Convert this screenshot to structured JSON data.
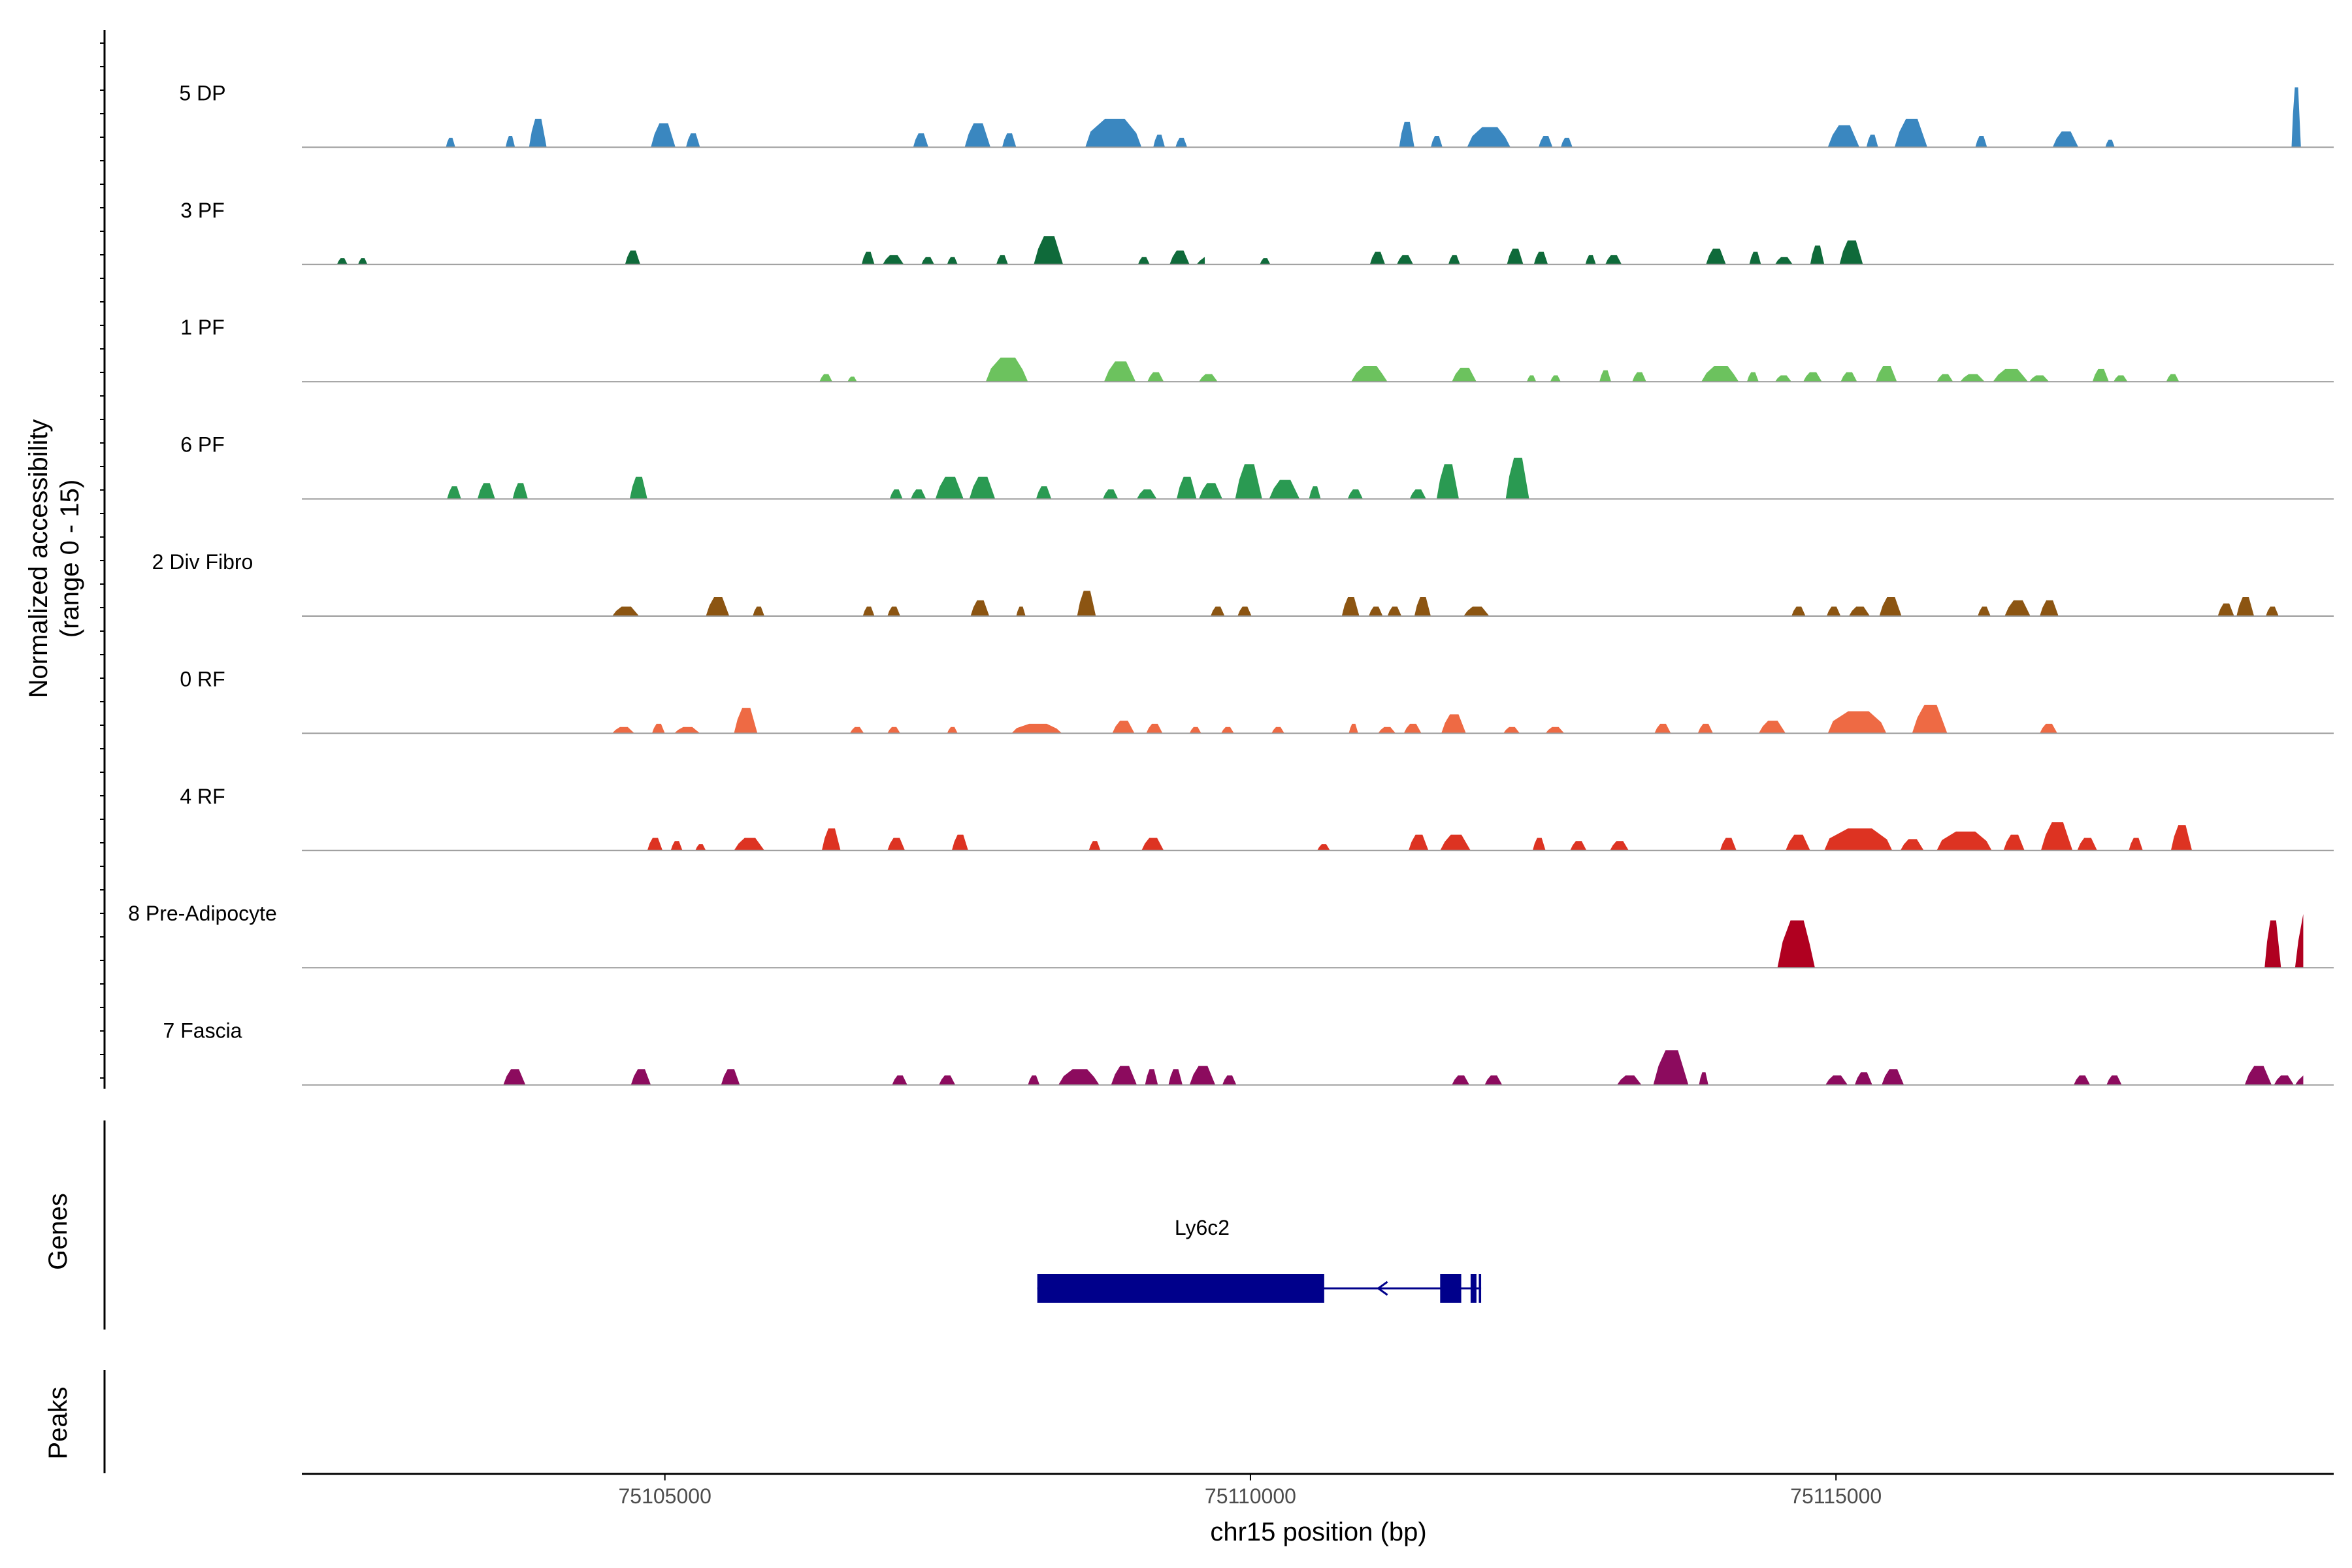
{
  "chart_data": {
    "type": "area",
    "title": "",
    "y_axis_label_line1": "Normalized accessibility",
    "y_axis_label_line2": "(range 0 - 15)",
    "y_range": [
      0,
      15
    ],
    "xlabel": "chr15 position (bp)",
    "xlim": [
      75101900,
      75119250
    ],
    "x_ticks": [
      75105000,
      75110000,
      75115000
    ],
    "x_tick_labels": [
      "75105000",
      "75110000",
      "75115000"
    ],
    "tracks": [
      {
        "name": "5 DP",
        "color": "#3a87c0",
        "peaks": [
          [
            75103130,
            75103210,
            1.5
          ],
          [
            75103640,
            75103720,
            1.8
          ],
          [
            75103840,
            75103990,
            4.5
          ],
          [
            75104880,
            75105090,
            3.8
          ],
          [
            75105180,
            75105300,
            2.2
          ],
          [
            75107120,
            75107250,
            2.2
          ],
          [
            75107560,
            75107780,
            3.8
          ],
          [
            75107880,
            75108000,
            2.2
          ],
          [
            75108590,
            75109070,
            4.5
          ],
          [
            75109170,
            75109270,
            2.0
          ],
          [
            75109360,
            75109460,
            1.5
          ],
          [
            75111270,
            75111400,
            4.0
          ],
          [
            75111540,
            75111640,
            1.8
          ],
          [
            75111850,
            75112220,
            3.2
          ],
          [
            75112460,
            75112580,
            1.8
          ],
          [
            75112650,
            75112750,
            1.5
          ],
          [
            75114930,
            75115200,
            3.5
          ],
          [
            75115260,
            75115360,
            2.0
          ],
          [
            75115500,
            75115780,
            4.5
          ],
          [
            75116190,
            75116290,
            1.8
          ],
          [
            75116850,
            75117070,
            2.5
          ],
          [
            75117300,
            75117380,
            1.2
          ],
          [
            75118890,
            75118970,
            9.5
          ]
        ]
      },
      {
        "name": "3 PF",
        "color": "#0f6a3a",
        "peaks": [
          [
            75102200,
            75102290,
            1.0
          ],
          [
            75102380,
            75102460,
            1.0
          ],
          [
            75104660,
            75104790,
            2.2
          ],
          [
            75106680,
            75106790,
            2.0
          ],
          [
            75106860,
            75107040,
            1.5
          ],
          [
            75107190,
            75107300,
            1.2
          ],
          [
            75107410,
            75107500,
            1.2
          ],
          [
            75107830,
            75107930,
            1.5
          ],
          [
            75108150,
            75108400,
            4.5
          ],
          [
            75109040,
            75109140,
            1.2
          ],
          [
            75109310,
            75109480,
            2.2
          ],
          [
            75109540,
            75109610,
            1.2
          ],
          [
            75110080,
            75110170,
            1.0
          ],
          [
            75111020,
            75111150,
            2.0
          ],
          [
            75111250,
            75111390,
            1.5
          ],
          [
            75111690,
            75111790,
            1.5
          ],
          [
            75112190,
            75112330,
            2.5
          ],
          [
            75112420,
            75112540,
            2.0
          ],
          [
            75112860,
            75112950,
            1.5
          ],
          [
            75113030,
            75113170,
            1.5
          ],
          [
            75113890,
            75114060,
            2.5
          ],
          [
            75114260,
            75114360,
            2.0
          ],
          [
            75114480,
            75114630,
            1.2
          ],
          [
            75114780,
            75114900,
            3.0
          ],
          [
            75115030,
            75115230,
            3.8
          ]
        ]
      },
      {
        "name": "1 PF",
        "color": "#6cc25e",
        "peaks": [
          [
            75106320,
            75106430,
            1.2
          ],
          [
            75106560,
            75106640,
            0.8
          ],
          [
            75107740,
            75108100,
            3.8
          ],
          [
            75108750,
            75109020,
            3.2
          ],
          [
            75109120,
            75109260,
            1.5
          ],
          [
            75109560,
            75109720,
            1.2
          ],
          [
            75110860,
            75111170,
            2.5
          ],
          [
            75111720,
            75111930,
            2.2
          ],
          [
            75112360,
            75112440,
            1.0
          ],
          [
            75112560,
            75112650,
            1.0
          ],
          [
            75112980,
            75113080,
            1.8
          ],
          [
            75113260,
            75113380,
            1.5
          ],
          [
            75113850,
            75114170,
            2.5
          ],
          [
            75114240,
            75114340,
            1.5
          ],
          [
            75114480,
            75114620,
            1.0
          ],
          [
            75114720,
            75114880,
            1.5
          ],
          [
            75115040,
            75115180,
            1.5
          ],
          [
            75115340,
            75115520,
            2.5
          ],
          [
            75115860,
            75116000,
            1.2
          ],
          [
            75116060,
            75116270,
            1.2
          ],
          [
            75116340,
            75116640,
            2.0
          ],
          [
            75116650,
            75116820,
            1.0
          ],
          [
            75117190,
            75117330,
            2.0
          ],
          [
            75117370,
            75117490,
            1.0
          ],
          [
            75117820,
            75117930,
            1.2
          ]
        ]
      },
      {
        "name": "6 PF",
        "color": "#2a9a52",
        "peaks": [
          [
            75103140,
            75103260,
            2.0
          ],
          [
            75103400,
            75103550,
            2.5
          ],
          [
            75103700,
            75103830,
            2.5
          ],
          [
            75104700,
            75104850,
            3.5
          ],
          [
            75106920,
            75107030,
            1.5
          ],
          [
            75107100,
            75107230,
            1.5
          ],
          [
            75107310,
            75107550,
            3.5
          ],
          [
            75107600,
            75107820,
            3.5
          ],
          [
            75108170,
            75108300,
            2.0
          ],
          [
            75108740,
            75108870,
            1.5
          ],
          [
            75109030,
            75109200,
            1.5
          ],
          [
            75109370,
            75109540,
            3.5
          ],
          [
            75109560,
            75109760,
            2.5
          ],
          [
            75109870,
            75110100,
            5.5
          ],
          [
            75110160,
            75110420,
            3.0
          ],
          [
            75110500,
            75110600,
            2.0
          ],
          [
            75110830,
            75110960,
            1.5
          ],
          [
            75111360,
            75111500,
            1.5
          ],
          [
            75111590,
            75111780,
            5.5
          ],
          [
            75112180,
            75112380,
            6.5
          ]
        ]
      },
      {
        "name": "2 Div Fibro",
        "color": "#8c5512",
        "peaks": [
          [
            75104550,
            75104780,
            1.5
          ],
          [
            75105350,
            75105550,
            3.0
          ],
          [
            75105750,
            75105850,
            1.5
          ],
          [
            75106690,
            75106790,
            1.5
          ],
          [
            75106900,
            75107010,
            1.5
          ],
          [
            75107610,
            75107770,
            2.5
          ],
          [
            75108000,
            75108080,
            1.5
          ],
          [
            75108520,
            75108680,
            4.0
          ],
          [
            75109660,
            75109780,
            1.5
          ],
          [
            75109890,
            75110010,
            1.5
          ],
          [
            75110780,
            75110930,
            3.0
          ],
          [
            75111010,
            75111130,
            1.5
          ],
          [
            75111170,
            75111290,
            1.5
          ],
          [
            75111400,
            75111540,
            3.0
          ],
          [
            75111820,
            75112040,
            1.5
          ],
          [
            75114620,
            75114740,
            1.5
          ],
          [
            75114920,
            75115040,
            1.5
          ],
          [
            75115110,
            75115290,
            1.5
          ],
          [
            75115370,
            75115560,
            3.0
          ],
          [
            75116210,
            75116320,
            1.5
          ],
          [
            75116440,
            75116660,
            2.5
          ],
          [
            75116740,
            75116900,
            2.5
          ],
          [
            75118260,
            75118400,
            2.0
          ],
          [
            75118420,
            75118570,
            3.0
          ],
          [
            75118670,
            75118780,
            1.5
          ]
        ]
      },
      {
        "name": "0 RF",
        "color": "#ee6a44",
        "peaks": [
          [
            75104550,
            75104740,
            1.0
          ],
          [
            75104890,
            75105000,
            1.5
          ],
          [
            75105080,
            75105300,
            1.0
          ],
          [
            75105590,
            75105790,
            4.0
          ],
          [
            75106580,
            75106700,
            1.0
          ],
          [
            75106900,
            75107010,
            1.0
          ],
          [
            75107410,
            75107500,
            1.0
          ],
          [
            75107960,
            75108390,
            1.5
          ],
          [
            75108820,
            75109010,
            2.0
          ],
          [
            75109110,
            75109250,
            1.5
          ],
          [
            75109480,
            75109580,
            1.0
          ],
          [
            75109750,
            75109860,
            1.0
          ],
          [
            75110180,
            75110290,
            1.0
          ],
          [
            75110840,
            75110920,
            1.5
          ],
          [
            75111090,
            75111240,
            1.0
          ],
          [
            75111310,
            75111460,
            1.5
          ],
          [
            75111630,
            75111840,
            3.0
          ],
          [
            75112160,
            75112300,
            1.0
          ],
          [
            75112520,
            75112680,
            1.0
          ],
          [
            75113450,
            75113590,
            1.5
          ],
          [
            75113820,
            75113950,
            1.5
          ],
          [
            75114340,
            75114570,
            2.0
          ],
          [
            75114930,
            75115430,
            3.5
          ],
          [
            75115650,
            75115950,
            4.5
          ],
          [
            75116740,
            75116890,
            1.5
          ]
        ]
      },
      {
        "name": "4 RF",
        "color": "#dd3322",
        "peaks": [
          [
            75104850,
            75104980,
            2.0
          ],
          [
            75105050,
            75105150,
            1.5
          ],
          [
            75105260,
            75105350,
            1.0
          ],
          [
            75105590,
            75105850,
            2.0
          ],
          [
            75106340,
            75106500,
            3.5
          ],
          [
            75106900,
            75107050,
            2.0
          ],
          [
            75107450,
            75107590,
            2.5
          ],
          [
            75108620,
            75108720,
            1.5
          ],
          [
            75109070,
            75109260,
            2.0
          ],
          [
            75110570,
            75110680,
            1.0
          ],
          [
            75111350,
            75111520,
            2.5
          ],
          [
            75111620,
            75111880,
            2.5
          ],
          [
            75112410,
            75112520,
            2.0
          ],
          [
            75112730,
            75112870,
            1.5
          ],
          [
            75113070,
            75113230,
            1.5
          ],
          [
            75114010,
            75114150,
            2.0
          ],
          [
            75114570,
            75114780,
            2.5
          ],
          [
            75114900,
            75115480,
            3.5
          ],
          [
            75115550,
            75115750,
            1.8
          ],
          [
            75115860,
            75116330,
            3.0
          ],
          [
            75116430,
            75116610,
            2.5
          ],
          [
            75116750,
            75117020,
            4.5
          ],
          [
            75117060,
            75117230,
            2.0
          ],
          [
            75117500,
            75117620,
            2.0
          ],
          [
            75117860,
            75118040,
            4.0
          ]
        ]
      },
      {
        "name": "8 Pre-Adipocyte",
        "color": "#b00020",
        "peaks": [
          [
            75114500,
            75114820,
            7.5
          ],
          [
            75118660,
            75118800,
            7.5
          ],
          [
            75118920,
            75118990,
            8.5
          ]
        ]
      },
      {
        "name": "7 Fascia",
        "color": "#8c0b5e",
        "peaks": [
          [
            75103620,
            75103810,
            2.5
          ],
          [
            75104710,
            75104880,
            2.5
          ],
          [
            75105480,
            75105640,
            2.5
          ],
          [
            75106940,
            75107070,
            1.5
          ],
          [
            75107340,
            75107480,
            1.5
          ],
          [
            75108100,
            75108200,
            1.5
          ],
          [
            75108360,
            75108710,
            2.5
          ],
          [
            75108810,
            75109030,
            3.0
          ],
          [
            75109100,
            75109210,
            2.5
          ],
          [
            75109300,
            75109420,
            2.5
          ],
          [
            75109480,
            75109700,
            3.0
          ],
          [
            75109760,
            75109880,
            1.5
          ],
          [
            75111720,
            75111870,
            1.5
          ],
          [
            75112000,
            75112150,
            1.5
          ],
          [
            75113130,
            75113340,
            1.5
          ],
          [
            75113440,
            75113740,
            5.5
          ],
          [
            75113830,
            75113910,
            2.0
          ],
          [
            75114910,
            75115100,
            1.5
          ],
          [
            75115160,
            75115310,
            2.0
          ],
          [
            75115390,
            75115580,
            2.5
          ],
          [
            75117030,
            75117170,
            1.5
          ],
          [
            75117310,
            75117440,
            1.5
          ],
          [
            75118490,
            75118720,
            3.0
          ],
          [
            75118740,
            75118910,
            1.5
          ],
          [
            75118920,
            75118990,
            1.5
          ]
        ]
      }
    ],
    "genes_label": "Genes",
    "peaks_label": "Peaks",
    "gene": {
      "name": "Ly6c2",
      "color": "#00008b",
      "start": 75108180,
      "end": 75111970,
      "strand": "-",
      "exons": [
        [
          75108180,
          75110630
        ],
        [
          75111620,
          75111800
        ],
        [
          75111880,
          75111930
        ],
        [
          75111950,
          75111970
        ]
      ]
    }
  }
}
